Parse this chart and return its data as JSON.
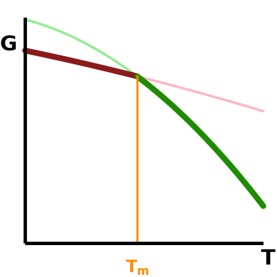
{
  "title": "",
  "xlabel": "T",
  "ylabel": "G",
  "xlabel_fontsize": 22,
  "ylabel_fontsize": 22,
  "Tm": 0.47,
  "Tm_color": "#FF8C00",
  "line_lw_thick": 6,
  "line_lw_thin": 2.5,
  "solid_color": "#8B1A1A",
  "liquid_color_bright": "#1E8B00",
  "solid_extension_color": "#FFB6C1",
  "liquid_extension_color": "#90EE90",
  "vline_color": "#FF8C00",
  "vline_lw": 2.2,
  "bg_color": "#FFFFFF",
  "axis_lw": 3.5,
  "figsize": [
    4.0,
    4.0
  ],
  "dpi": 100
}
